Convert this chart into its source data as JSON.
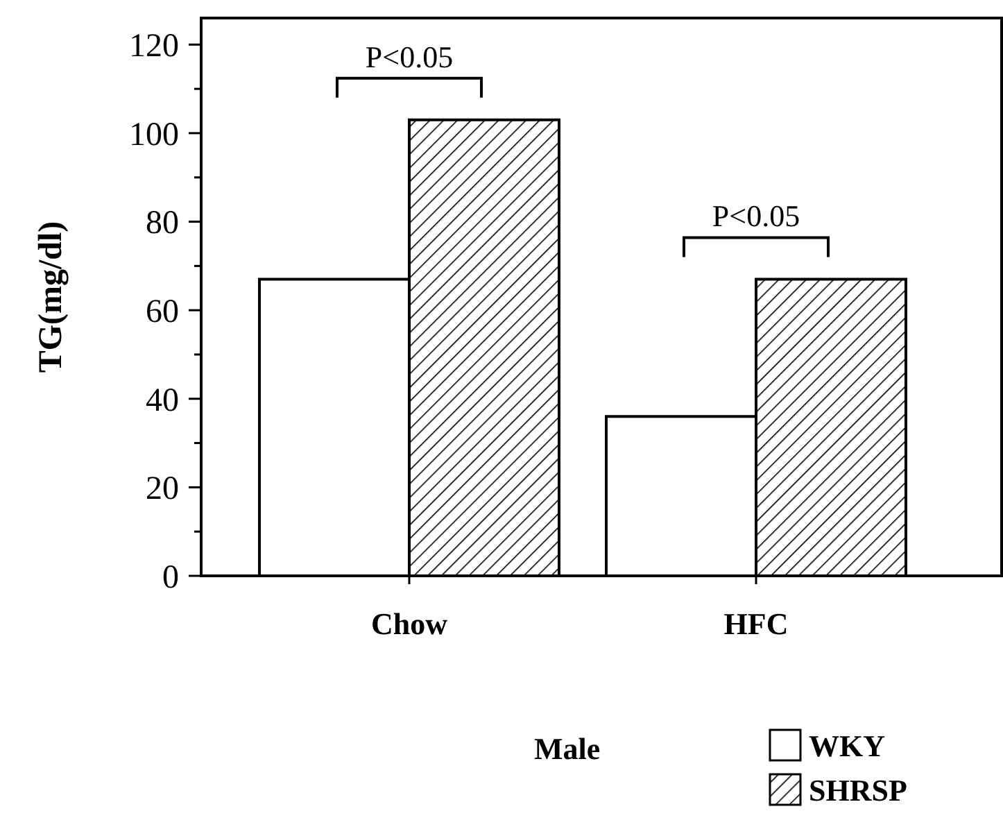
{
  "chart_data": {
    "type": "bar",
    "ylabel": "TG(mg/dl)",
    "categories": [
      "Chow",
      "HFC"
    ],
    "series": [
      {
        "name": "WKY",
        "color": "#ffffff",
        "values": [
          67,
          36
        ]
      },
      {
        "name": "SHRSP",
        "color": "#000000",
        "values": [
          103,
          67
        ]
      }
    ],
    "ylim": [
      0,
      126
    ],
    "yticks": [
      0,
      {
        "value": 10,
        "label": null
      },
      20,
      {
        "value": 30,
        "label": null
      },
      40,
      {
        "value": 50,
        "label": null
      },
      60,
      {
        "value": 70,
        "label": null
      },
      80,
      {
        "value": 90,
        "label": null
      },
      100,
      {
        "value": 110,
        "label": null
      },
      120
    ],
    "legend": "bottom right",
    "legend_title": "Male",
    "annotations": [
      "P<0.05",
      "P<0.05"
    ],
    "grid": false
  }
}
